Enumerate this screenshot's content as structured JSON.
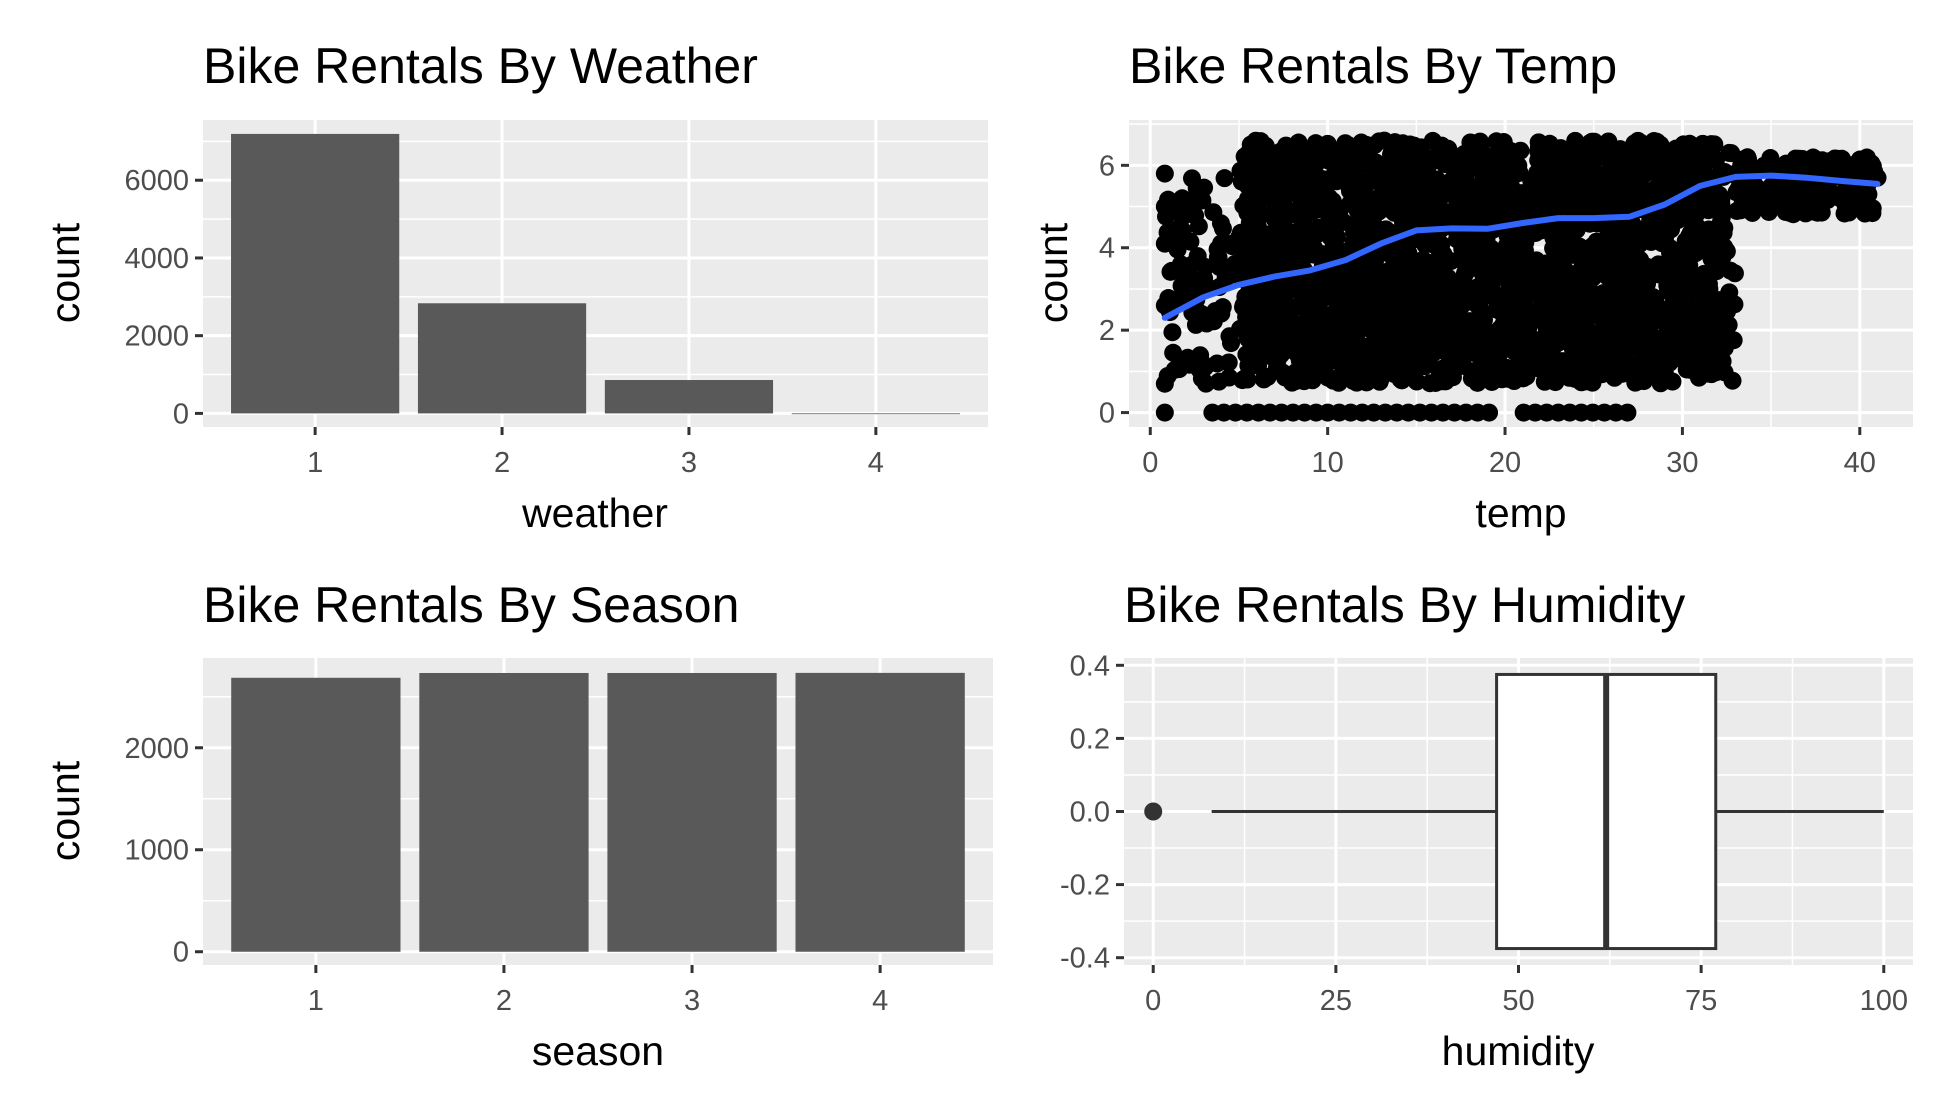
{
  "chart_data": [
    {
      "type": "bar",
      "title": "Bike Rentals By Weather",
      "xlabel": "weather",
      "ylabel": "count",
      "categories": [
        "1",
        "2",
        "3",
        "4"
      ],
      "values": [
        7192,
        2834,
        859,
        1
      ],
      "xlim": [
        0.4,
        4.6
      ],
      "ylim": [
        -350,
        7550
      ],
      "xticks": [
        1,
        2,
        3,
        4
      ],
      "yticks": [
        0,
        2000,
        4000,
        6000
      ],
      "grid": true
    },
    {
      "type": "scatter",
      "title": "Bike Rentals By Temp",
      "xlabel": "temp",
      "ylabel": "count",
      "xlim": [
        -1.2,
        43.0
      ],
      "ylim": [
        -0.35,
        7.1
      ],
      "xticks": [
        0,
        10,
        20,
        30,
        40
      ],
      "yticks": [
        0,
        2,
        4,
        6
      ],
      "grid": true,
      "point_color": "#000000",
      "smooth_color": "#3366ff",
      "smooth": {
        "x": [
          0.82,
          3,
          5,
          7,
          9,
          11,
          13,
          15,
          17,
          19,
          21,
          23,
          25,
          27,
          29,
          31,
          33,
          35,
          37,
          39,
          41
        ],
        "y": [
          2.3,
          2.8,
          3.1,
          3.3,
          3.45,
          3.7,
          4.1,
          4.42,
          4.47,
          4.46,
          4.6,
          4.72,
          4.72,
          4.75,
          5.05,
          5.5,
          5.72,
          5.75,
          5.7,
          5.62,
          5.55
        ]
      }
    },
    {
      "type": "bar",
      "title": "Bike Rentals By Season",
      "xlabel": "season",
      "ylabel": "count",
      "categories": [
        "1",
        "2",
        "3",
        "4"
      ],
      "values": [
        2686,
        2733,
        2733,
        2734
      ],
      "xlim": [
        0.4,
        4.6
      ],
      "ylim": [
        -130,
        2880
      ],
      "xticks": [
        1,
        2,
        3,
        4
      ],
      "yticks": [
        0,
        1000,
        2000
      ],
      "grid": true
    },
    {
      "type": "box",
      "title": "Bike Rentals By Humidity",
      "xlabel": "humidity",
      "ylabel": "",
      "xlim": [
        -4,
        104
      ],
      "ylim": [
        -0.42,
        0.42
      ],
      "xticks": [
        0,
        25,
        50,
        75,
        100
      ],
      "yticks": [
        -0.4,
        -0.2,
        0.0,
        0.2,
        0.4
      ],
      "ytick_labels": [
        "-0.4",
        "-0.2",
        "0.0",
        "0.2",
        "0.4"
      ],
      "grid": true,
      "box": {
        "min": 8,
        "q1": 47,
        "median": 62,
        "q3": 77,
        "max": 100,
        "outliers": [
          0
        ]
      }
    }
  ]
}
